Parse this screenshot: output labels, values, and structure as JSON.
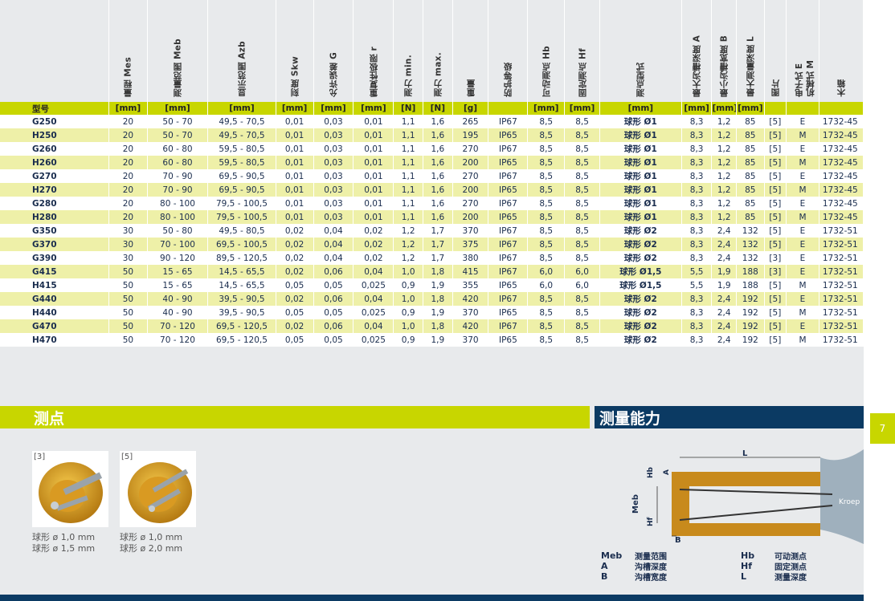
{
  "columns": [
    {
      "label": "型号",
      "unit": ""
    },
    {
      "label": "量程 Mes",
      "unit": "[mm]"
    },
    {
      "label": "测量范围 Meb",
      "unit": "[mm]"
    },
    {
      "label": "显示范围 Azb",
      "unit": "[mm]"
    },
    {
      "label": "刻度 Skw",
      "unit": "[mm]"
    },
    {
      "label": "允许误差 G",
      "unit": "[mm]"
    },
    {
      "label": "重复性极限 r",
      "unit": "[mm]"
    },
    {
      "label": "测力 min.",
      "unit": "[N]"
    },
    {
      "label": "测力 max.",
      "unit": "[N]"
    },
    {
      "label": "重量",
      "unit": "[g]"
    },
    {
      "label": "防护等级",
      "unit": ""
    },
    {
      "label": "可动测点 Hb",
      "unit": "[mm]"
    },
    {
      "label": "固定测点 Hf",
      "unit": "[mm]"
    },
    {
      "label": "测点型式",
      "unit": "[mm]"
    },
    {
      "label": "最大沟槽深度 A",
      "unit": "[mm]"
    },
    {
      "label": "最小沟槽宽度 B",
      "unit": "[mm]"
    },
    {
      "label": "最大测量深度 L",
      "unit": "[mm]"
    },
    {
      "label": "图片",
      "unit": ""
    },
    {
      "label": "电子式 E",
      "label2": "机械式 M",
      "unit": ""
    },
    {
      "label": "木箱",
      "unit": ""
    }
  ],
  "rows": [
    [
      "G250",
      "20",
      "50 - 70",
      "49,5 - 70,5",
      "0,01",
      "0,03",
      "0,01",
      "1,1",
      "1,6",
      "265",
      "IP67",
      "8,5",
      "8,5",
      "球形 Ø1",
      "8,3",
      "1,2",
      "85",
      "[5]",
      "E",
      "1732-45"
    ],
    [
      "H250",
      "20",
      "50 - 70",
      "49,5 - 70,5",
      "0,01",
      "0,03",
      "0,01",
      "1,1",
      "1,6",
      "195",
      "IP65",
      "8,5",
      "8,5",
      "球形 Ø1",
      "8,3",
      "1,2",
      "85",
      "[5]",
      "M",
      "1732-45"
    ],
    [
      "G260",
      "20",
      "60 - 80",
      "59,5 - 80,5",
      "0,01",
      "0,03",
      "0,01",
      "1,1",
      "1,6",
      "270",
      "IP67",
      "8,5",
      "8,5",
      "球形 Ø1",
      "8,3",
      "1,2",
      "85",
      "[5]",
      "E",
      "1732-45"
    ],
    [
      "H260",
      "20",
      "60 - 80",
      "59,5 - 80,5",
      "0,01",
      "0,03",
      "0,01",
      "1,1",
      "1,6",
      "200",
      "IP65",
      "8,5",
      "8,5",
      "球形 Ø1",
      "8,3",
      "1,2",
      "85",
      "[5]",
      "M",
      "1732-45"
    ],
    [
      "G270",
      "20",
      "70 - 90",
      "69,5 - 90,5",
      "0,01",
      "0,03",
      "0,01",
      "1,1",
      "1,6",
      "270",
      "IP67",
      "8,5",
      "8,5",
      "球形 Ø1",
      "8,3",
      "1,2",
      "85",
      "[5]",
      "E",
      "1732-45"
    ],
    [
      "H270",
      "20",
      "70 - 90",
      "69,5 - 90,5",
      "0,01",
      "0,03",
      "0,01",
      "1,1",
      "1,6",
      "200",
      "IP65",
      "8,5",
      "8,5",
      "球形 Ø1",
      "8,3",
      "1,2",
      "85",
      "[5]",
      "M",
      "1732-45"
    ],
    [
      "G280",
      "20",
      "80 - 100",
      "79,5 - 100,5",
      "0,01",
      "0,03",
      "0,01",
      "1,1",
      "1,6",
      "270",
      "IP67",
      "8,5",
      "8,5",
      "球形 Ø1",
      "8,3",
      "1,2",
      "85",
      "[5]",
      "E",
      "1732-45"
    ],
    [
      "H280",
      "20",
      "80 - 100",
      "79,5 - 100,5",
      "0,01",
      "0,03",
      "0,01",
      "1,1",
      "1,6",
      "200",
      "IP65",
      "8,5",
      "8,5",
      "球形 Ø1",
      "8,3",
      "1,2",
      "85",
      "[5]",
      "M",
      "1732-45"
    ],
    [
      "G350",
      "30",
      "50 - 80",
      "49,5 - 80,5",
      "0,02",
      "0,04",
      "0,02",
      "1,2",
      "1,7",
      "370",
      "IP67",
      "8,5",
      "8,5",
      "球形 Ø2",
      "8,3",
      "2,4",
      "132",
      "[5]",
      "E",
      "1732-51"
    ],
    [
      "G370",
      "30",
      "70 - 100",
      "69,5 - 100,5",
      "0,02",
      "0,04",
      "0,02",
      "1,2",
      "1,7",
      "375",
      "IP67",
      "8,5",
      "8,5",
      "球形 Ø2",
      "8,3",
      "2,4",
      "132",
      "[5]",
      "E",
      "1732-51"
    ],
    [
      "G390",
      "30",
      "90 - 120",
      "89,5 - 120,5",
      "0,02",
      "0,04",
      "0,02",
      "1,2",
      "1,7",
      "380",
      "IP67",
      "8,5",
      "8,5",
      "球形 Ø2",
      "8,3",
      "2,4",
      "132",
      "[3]",
      "E",
      "1732-51"
    ],
    [
      "G415",
      "50",
      "15 - 65",
      "14,5 - 65,5",
      "0,02",
      "0,06",
      "0,04",
      "1,0",
      "1,8",
      "415",
      "IP67",
      "6,0",
      "6,0",
      "球形 Ø1,5",
      "5,5",
      "1,9",
      "188",
      "[3]",
      "E",
      "1732-51"
    ],
    [
      "H415",
      "50",
      "15 - 65",
      "14,5 - 65,5",
      "0,05",
      "0,05",
      "0,025",
      "0,9",
      "1,9",
      "355",
      "IP65",
      "6,0",
      "6,0",
      "球形 Ø1,5",
      "5,5",
      "1,9",
      "188",
      "[5]",
      "M",
      "1732-51"
    ],
    [
      "G440",
      "50",
      "40 - 90",
      "39,5 - 90,5",
      "0,02",
      "0,06",
      "0,04",
      "1,0",
      "1,8",
      "420",
      "IP67",
      "8,5",
      "8,5",
      "球形 Ø2",
      "8,3",
      "2,4",
      "192",
      "[5]",
      "E",
      "1732-51"
    ],
    [
      "H440",
      "50",
      "40 - 90",
      "39,5 - 90,5",
      "0,05",
      "0,05",
      "0,025",
      "0,9",
      "1,9",
      "370",
      "IP65",
      "8,5",
      "8,5",
      "球形 Ø2",
      "8,3",
      "2,4",
      "192",
      "[5]",
      "M",
      "1732-51"
    ],
    [
      "G470",
      "50",
      "70 - 120",
      "69,5 - 120,5",
      "0,02",
      "0,06",
      "0,04",
      "1,0",
      "1,8",
      "420",
      "IP67",
      "8,5",
      "8,5",
      "球形 Ø2",
      "8,3",
      "2,4",
      "192",
      "[5]",
      "E",
      "1732-51"
    ],
    [
      "H470",
      "50",
      "70 - 120",
      "69,5 - 120,5",
      "0,05",
      "0,05",
      "0,025",
      "0,9",
      "1,9",
      "370",
      "IP65",
      "8,5",
      "8,5",
      "球形 Ø2",
      "8,3",
      "2,4",
      "192",
      "[5]",
      "M",
      "1732-51"
    ]
  ],
  "sections": {
    "tips_title": "测点",
    "capability_title": "测量能力",
    "page_number": "7"
  },
  "tip_images": [
    {
      "num": "[3]",
      "caption1": "球形 ø 1,0 mm",
      "caption2": "球形 ø 1,5 mm"
    },
    {
      "num": "[5]",
      "caption1": "球形 ø 1,0 mm",
      "caption2": "球形 ø 2,0 mm"
    }
  ],
  "diagram": {
    "labels": {
      "L": "L",
      "Hb": "Hb",
      "A": "A",
      "Meb": "Meb",
      "Hf": "Hf",
      "B": "B",
      "brand": "Kroep"
    }
  },
  "legend": [
    {
      "k": "Meb",
      "v": "测量范围",
      "k2": "Hb",
      "v2": "可动测点"
    },
    {
      "k": "A",
      "v": "沟槽深度",
      "k2": "Hf",
      "v2": "固定测点"
    },
    {
      "k": "B",
      "v": "沟槽宽度",
      "k2": "L",
      "v2": "测量深度"
    }
  ],
  "colors": {
    "accent": "#c8d600",
    "navy": "#0b3a63",
    "row_alt": "#eef0a8",
    "text": "#1a2d4e"
  }
}
